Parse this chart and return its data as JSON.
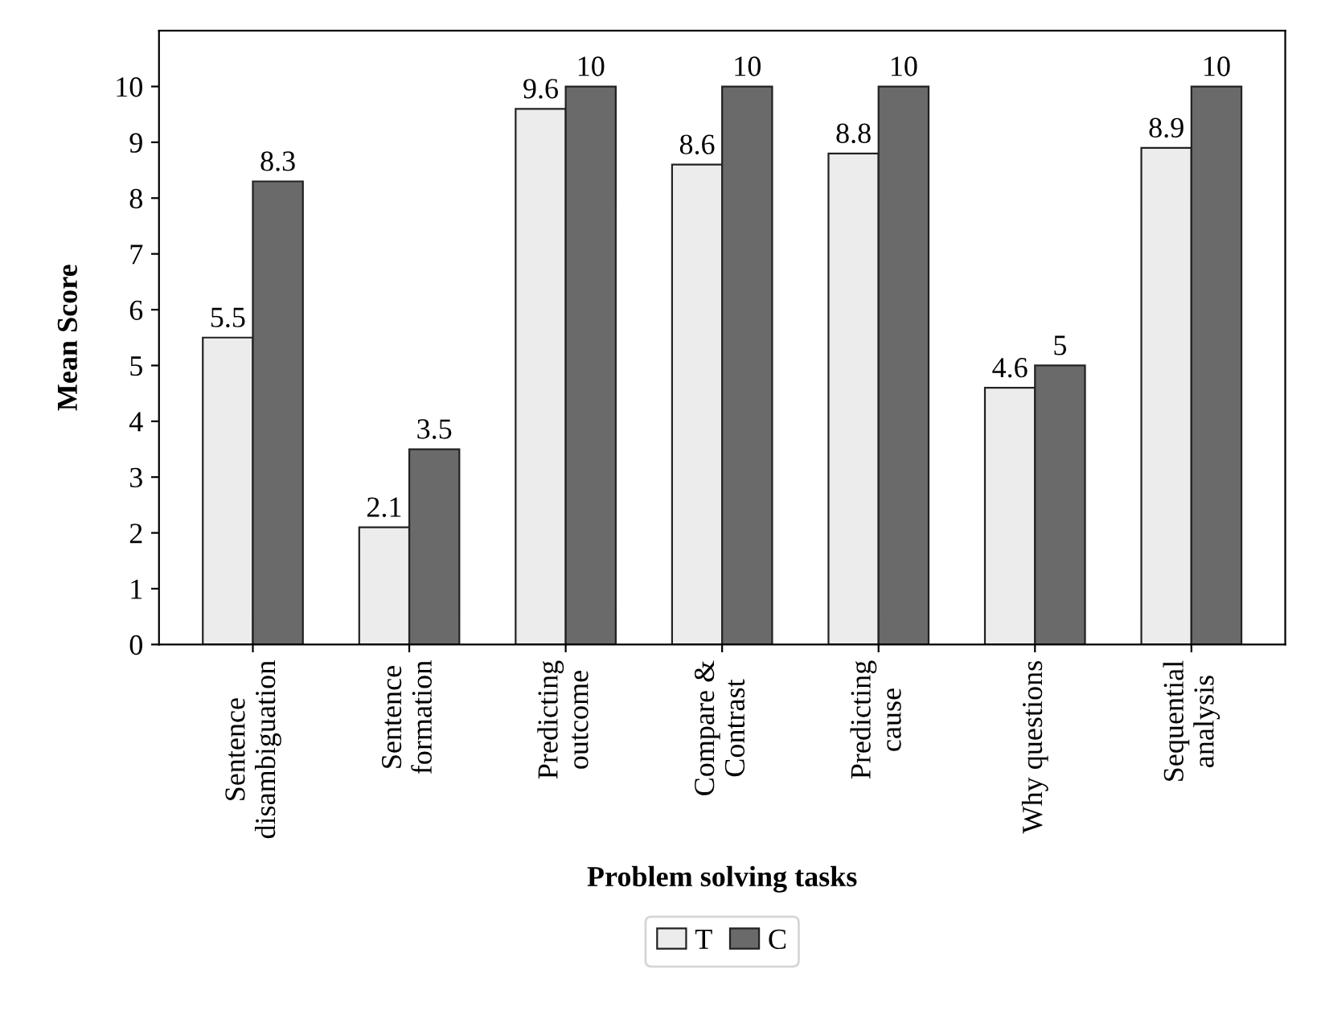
{
  "chart_data": {
    "type": "bar",
    "xlabel": "Problem solving tasks",
    "ylabel": "Mean Score",
    "categories": [
      "Sentence\ndisambiguation",
      "Sentence\nformation",
      "Predicting\noutcome",
      "Compare &\nContrast",
      "Predicting\ncause",
      "Why questions",
      "Sequential\nanalysis"
    ],
    "series": [
      {
        "name": "T",
        "color": "#ececec",
        "values": [
          5.5,
          2.1,
          9.6,
          8.6,
          8.8,
          4.6,
          8.9
        ]
      },
      {
        "name": "C",
        "color": "#6a6a6a",
        "values": [
          8.3,
          3.5,
          10,
          10,
          10,
          5,
          10
        ]
      }
    ],
    "ylim": [
      0,
      11
    ],
    "yticks": [
      0,
      1,
      2,
      3,
      4,
      5,
      6,
      7,
      8,
      9,
      10
    ],
    "data_labels": true,
    "grid": false,
    "legend": "bottom"
  }
}
